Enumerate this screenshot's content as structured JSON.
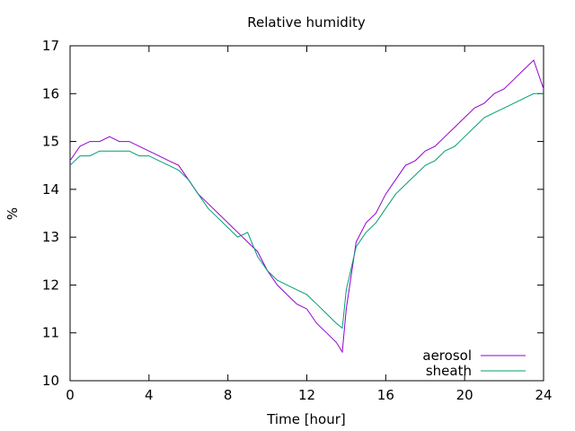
{
  "chart_data": {
    "type": "line",
    "title": "Relative humidity",
    "xlabel": "Time [hour]",
    "ylabel": "%",
    "xlim": [
      0,
      24
    ],
    "ylim": [
      10,
      17
    ],
    "xticks": [
      0,
      4,
      8,
      12,
      16,
      20,
      24
    ],
    "yticks": [
      10,
      11,
      12,
      13,
      14,
      15,
      16,
      17
    ],
    "grid": false,
    "legend_position": "bottom-right",
    "series": [
      {
        "name": "aerosol",
        "color": "#9400d3",
        "x": [
          0,
          0.5,
          1,
          1.5,
          2,
          2.5,
          3,
          3.5,
          4,
          4.5,
          5,
          5.5,
          6,
          6.5,
          7,
          7.5,
          8,
          8.5,
          9,
          9.5,
          10,
          10.5,
          11,
          11.5,
          12,
          12.5,
          13,
          13.5,
          13.8,
          14,
          14.5,
          15,
          15.5,
          16,
          16.5,
          17,
          17.5,
          18,
          18.5,
          19,
          19.5,
          20,
          20.5,
          21,
          21.5,
          22,
          22.5,
          23,
          23.5,
          24
        ],
        "values": [
          14.6,
          14.9,
          15.0,
          15.0,
          15.1,
          15.0,
          15.0,
          14.9,
          14.8,
          14.7,
          14.6,
          14.5,
          14.2,
          13.9,
          13.7,
          13.5,
          13.3,
          13.1,
          12.9,
          12.7,
          12.3,
          12.0,
          11.8,
          11.6,
          11.5,
          11.2,
          11.0,
          10.8,
          10.6,
          11.5,
          12.9,
          13.3,
          13.5,
          13.9,
          14.2,
          14.5,
          14.6,
          14.8,
          14.9,
          15.1,
          15.3,
          15.5,
          15.7,
          15.8,
          16.0,
          16.1,
          16.3,
          16.5,
          16.7,
          16.1
        ]
      },
      {
        "name": "sheath",
        "color": "#009e73",
        "x": [
          0,
          0.5,
          1,
          1.5,
          2,
          2.5,
          3,
          3.5,
          4,
          4.5,
          5,
          5.5,
          6,
          6.5,
          7,
          7.5,
          8,
          8.5,
          9,
          9.5,
          10,
          10.5,
          11,
          11.5,
          12,
          12.5,
          13,
          13.5,
          13.8,
          14,
          14.5,
          15,
          15.5,
          16,
          16.5,
          17,
          17.5,
          18,
          18.5,
          19,
          19.5,
          20,
          20.5,
          21,
          21.5,
          22,
          22.5,
          23,
          23.5,
          24
        ],
        "values": [
          14.5,
          14.7,
          14.7,
          14.8,
          14.8,
          14.8,
          14.8,
          14.7,
          14.7,
          14.6,
          14.5,
          14.4,
          14.2,
          13.9,
          13.6,
          13.4,
          13.2,
          13.0,
          13.1,
          12.6,
          12.3,
          12.1,
          12.0,
          11.9,
          11.8,
          11.6,
          11.4,
          11.2,
          11.1,
          11.9,
          12.8,
          13.1,
          13.3,
          13.6,
          13.9,
          14.1,
          14.3,
          14.5,
          14.6,
          14.8,
          14.9,
          15.1,
          15.3,
          15.5,
          15.6,
          15.7,
          15.8,
          15.9,
          16.0,
          16.0
        ]
      }
    ]
  }
}
